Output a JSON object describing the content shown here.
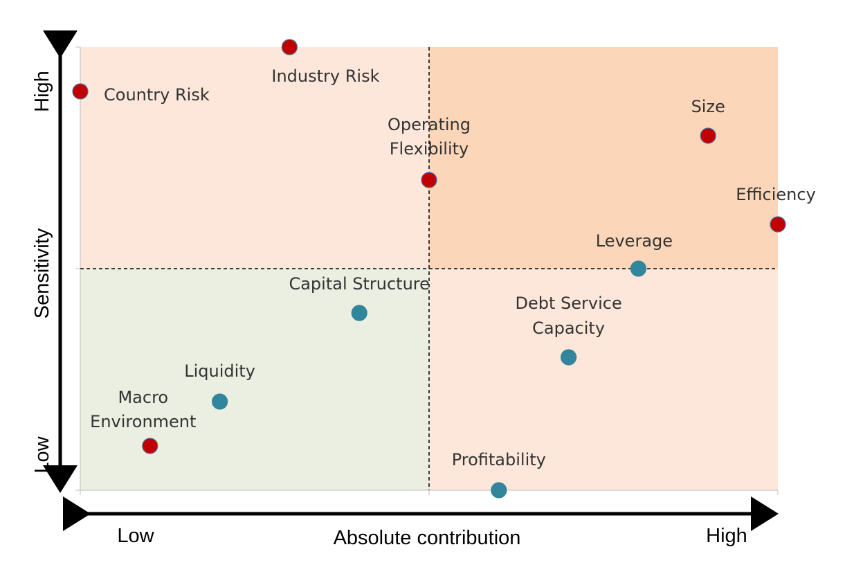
{
  "chart_data": {
    "type": "scatter",
    "title": "",
    "xlabel": "Absolute contribution",
    "ylabel": "Sensitivity",
    "x_axis_labels": {
      "low": "Low",
      "high": "High"
    },
    "y_axis_labels": {
      "low": "Low",
      "high": "High"
    },
    "xlim": [
      0,
      10
    ],
    "ylim": [
      0,
      10
    ],
    "quadrant_dividers": {
      "x": 5,
      "y": 5
    },
    "quadrant_colors": {
      "low_low": "#ebefe1",
      "low_high": "#fde7da",
      "high_low": "#fde7da",
      "high_high": "#fcd6b9"
    },
    "series_colors": {
      "red": "#c00000",
      "blue": "#31859c"
    },
    "points": [
      {
        "label": "Country Risk",
        "x": 0.0,
        "y": 9.0,
        "color": "red"
      },
      {
        "label": "Industry Risk",
        "x": 3.0,
        "y": 10.0,
        "color": "red"
      },
      {
        "label": "Operating Flexibility",
        "x": 5.0,
        "y": 7.0,
        "color": "red"
      },
      {
        "label": "Size",
        "x": 9.0,
        "y": 8.0,
        "color": "red"
      },
      {
        "label": "Efficiency",
        "x": 10.0,
        "y": 6.0,
        "color": "red"
      },
      {
        "label": "Leverage",
        "x": 8.0,
        "y": 5.0,
        "color": "blue"
      },
      {
        "label": "Capital Structure",
        "x": 4.0,
        "y": 4.0,
        "color": "blue"
      },
      {
        "label": "Debt Service Capacity",
        "x": 7.0,
        "y": 3.0,
        "color": "blue"
      },
      {
        "label": "Liquidity",
        "x": 2.0,
        "y": 2.0,
        "color": "blue"
      },
      {
        "label": "Macro Environment",
        "x": 1.0,
        "y": 1.0,
        "color": "red"
      },
      {
        "label": "Profitability",
        "x": 6.0,
        "y": 0.0,
        "color": "blue"
      }
    ]
  }
}
